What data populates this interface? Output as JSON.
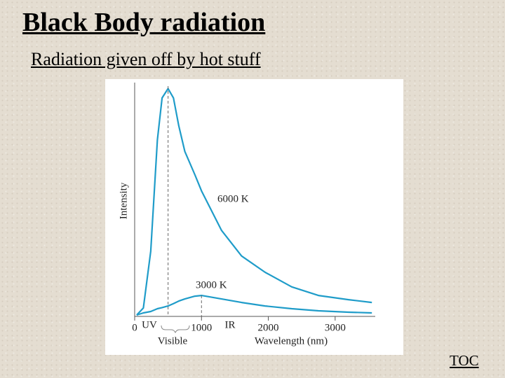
{
  "slide": {
    "title": "Black Body radiation",
    "subtitle": "Radiation given off by hot stuff",
    "link": "TOC"
  },
  "chart_data": {
    "type": "line",
    "x_label": "Wavelength (nm)",
    "y_label": "Intensity",
    "annotations": [
      "UV",
      "IR",
      "Visible"
    ],
    "x": [
      30,
      130,
      240,
      340,
      410,
      500,
      580,
      660,
      750,
      900,
      1000,
      1300,
      1600,
      1950,
      2350,
      2750,
      3200,
      3550
    ],
    "series": [
      {
        "name": "6000 K",
        "color": "#1f9cc9",
        "values": [
          0.6,
          3.6,
          28,
          76,
          94,
          98,
          94,
          82,
          71,
          61,
          54,
          37,
          26,
          19,
          12.7,
          9,
          7.2,
          6
        ]
      },
      {
        "name": "3000 K",
        "color": "#1f9cc9",
        "values": [
          0.6,
          1.5,
          2.1,
          3.3,
          3.8,
          4.5,
          5.5,
          6.6,
          7.5,
          8.7,
          9,
          7.5,
          6,
          4.5,
          3.3,
          2.4,
          1.8,
          1.5
        ]
      }
    ],
    "xlim": [
      0,
      3600
    ],
    "ylim": [
      0,
      100
    ],
    "xticks": [
      0,
      1000,
      2000,
      3000
    ]
  }
}
